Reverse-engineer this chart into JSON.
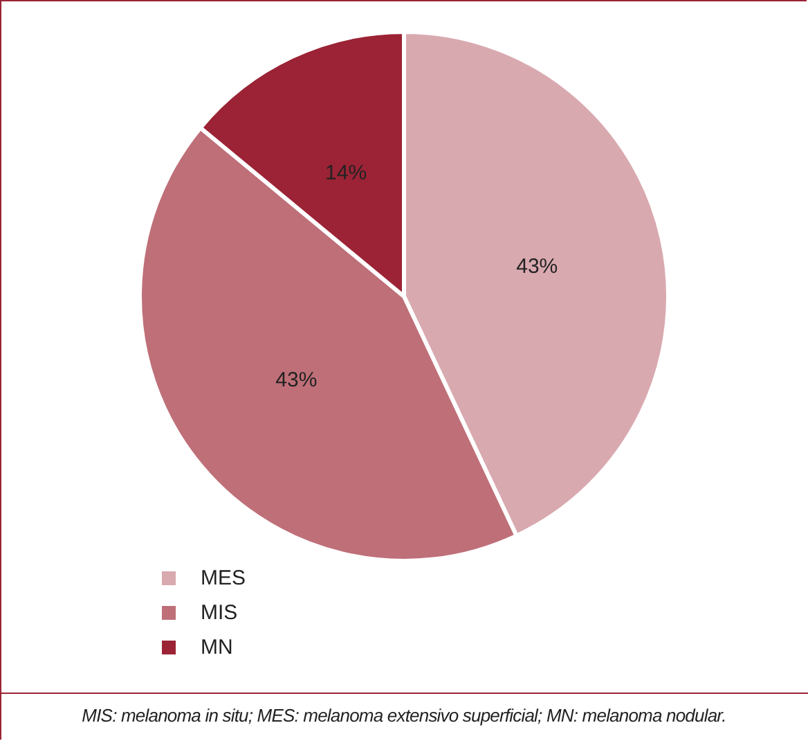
{
  "chart_data": {
    "type": "pie",
    "categories": [
      "MES",
      "MIS",
      "MN"
    ],
    "values": [
      43,
      43,
      14
    ],
    "value_labels": [
      "43%",
      "43%",
      "14%"
    ],
    "colors": [
      "#d9a9b0",
      "#bf6f78",
      "#9b2335"
    ],
    "legend": "bottom left",
    "annotations": [
      "MIS: melanoma in situ; MES: melanoma extensivo superficial; MN: melanoma nodular."
    ]
  }
}
